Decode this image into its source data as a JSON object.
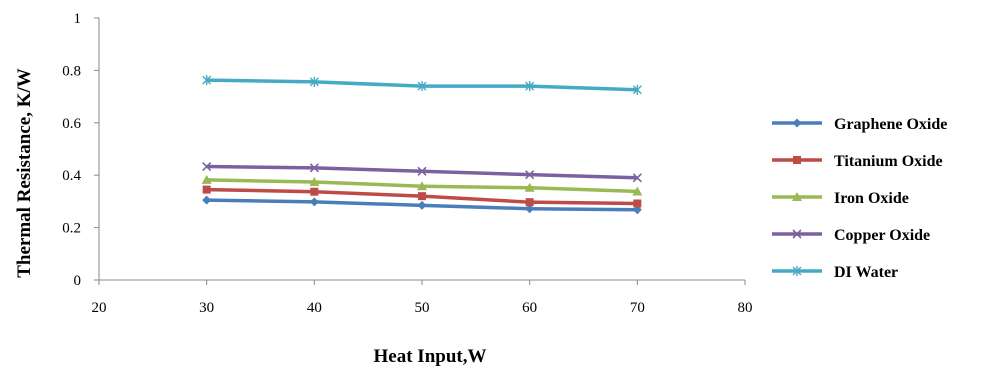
{
  "chart_data": {
    "type": "line",
    "xlabel": "Heat Input,W",
    "ylabel": "Thermal Resistance, K/W",
    "xlim": [
      20,
      80
    ],
    "ylim": [
      0,
      1
    ],
    "xticks": [
      20,
      30,
      40,
      50,
      60,
      70,
      80
    ],
    "yticks": [
      0,
      0.2,
      0.4,
      0.6,
      0.8,
      1
    ],
    "ytick_labels": [
      "0",
      "0.2",
      "0.4",
      "0.6",
      "0.8",
      "1"
    ],
    "grid": false,
    "legend_position": "right",
    "x": [
      30,
      40,
      50,
      60,
      70
    ],
    "series": [
      {
        "name": "Graphene Oxide",
        "values": [
          0.305,
          0.298,
          0.285,
          0.272,
          0.268
        ],
        "color": "#4a7ebb",
        "marker": "diamond"
      },
      {
        "name": "Titanium Oxide",
        "values": [
          0.345,
          0.337,
          0.32,
          0.297,
          0.292
        ],
        "color": "#be4b48",
        "marker": "square"
      },
      {
        "name": "Iron Oxide",
        "values": [
          0.382,
          0.374,
          0.358,
          0.352,
          0.338
        ],
        "color": "#98b954",
        "marker": "triangle"
      },
      {
        "name": "Copper Oxide",
        "values": [
          0.433,
          0.428,
          0.415,
          0.402,
          0.39
        ],
        "color": "#7d60a0",
        "marker": "x"
      },
      {
        "name": "DI Water",
        "values": [
          0.763,
          0.756,
          0.74,
          0.74,
          0.726
        ],
        "color": "#46aac5",
        "marker": "star"
      }
    ]
  }
}
